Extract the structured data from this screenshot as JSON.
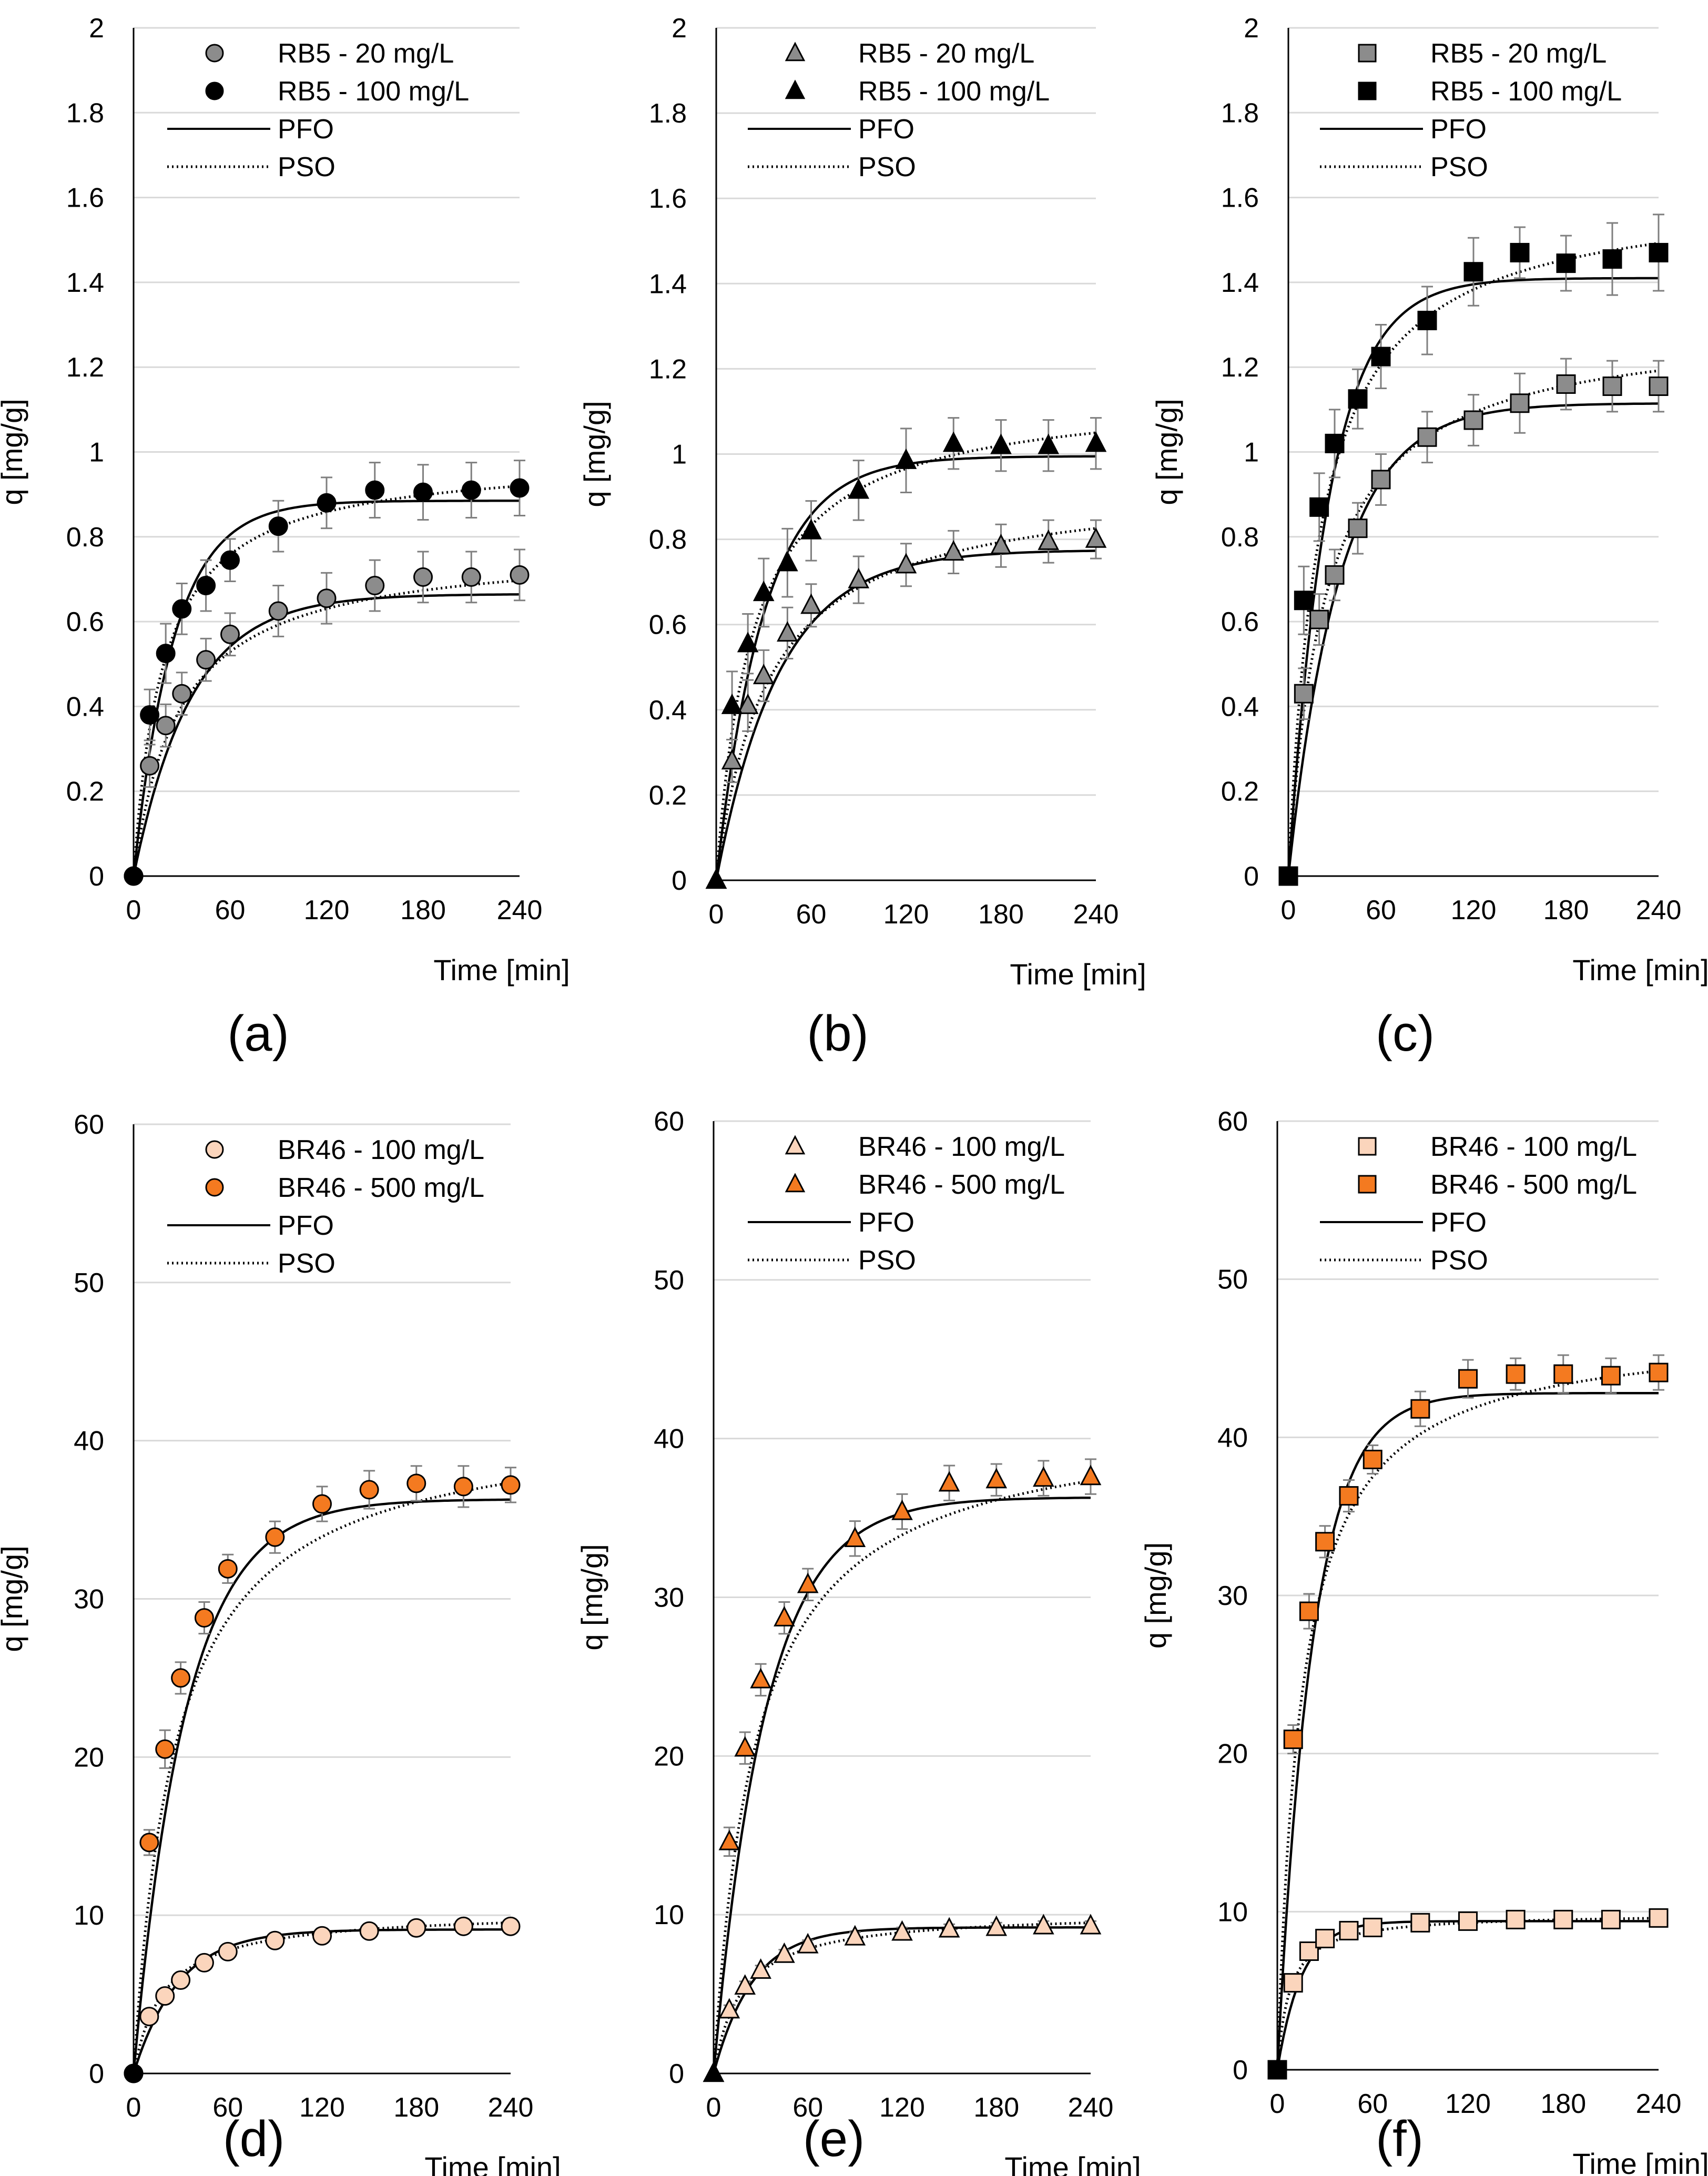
{
  "chart_data": [
    {
      "panel_label": "(a)",
      "type": "scatter",
      "xlabel": "Time [min]",
      "ylabel": "q [mg/g]",
      "xlim": [
        0,
        240
      ],
      "ylim": [
        0,
        2
      ],
      "xticks": [
        "0",
        "60",
        "120",
        "180",
        "240"
      ],
      "yticks": [
        "0",
        "0.2",
        "0.4",
        "0.6",
        "0.8",
        "1",
        "1.2",
        "1.4",
        "1.6",
        "1.8",
        "2"
      ],
      "grid": "horizontal",
      "legend_position": "top-right",
      "marker": "circle",
      "legend": [
        "RB5 - 20 mg/L",
        "RB5 - 100 mg/L",
        "PFO",
        "PSO"
      ],
      "x": [
        0,
        10,
        20,
        30,
        45,
        60,
        90,
        120,
        150,
        180,
        210,
        240
      ],
      "series": [
        {
          "name": "RB5 - 20 mg/L",
          "color": "#8c8c8c",
          "values": [
            0,
            0.26,
            0.355,
            0.43,
            0.51,
            0.57,
            0.625,
            0.655,
            0.685,
            0.705,
            0.705,
            0.71
          ],
          "error": [
            0,
            0.05,
            0.05,
            0.05,
            0.05,
            0.05,
            0.06,
            0.06,
            0.06,
            0.06,
            0.06,
            0.06
          ],
          "pfo": {
            "qe": 0.665,
            "k": 0.028
          },
          "pso": {
            "qe": 0.78,
            "k": 0.045
          }
        },
        {
          "name": "RB5 - 100 mg/L",
          "color": "#000000",
          "values": [
            0,
            0.38,
            0.525,
            0.63,
            0.685,
            0.745,
            0.825,
            0.88,
            0.91,
            0.905,
            0.91,
            0.915
          ],
          "error": [
            0,
            0.06,
            0.07,
            0.06,
            0.06,
            0.05,
            0.06,
            0.06,
            0.065,
            0.065,
            0.065,
            0.065
          ],
          "pfo": {
            "qe": 0.885,
            "k": 0.04
          },
          "pso": {
            "qe": 0.99,
            "k": 0.055
          }
        }
      ]
    },
    {
      "panel_label": "(b)",
      "type": "scatter",
      "xlabel": "Time [min]",
      "ylabel": "q [mg/g]",
      "xlim": [
        0,
        240
      ],
      "ylim": [
        0,
        2
      ],
      "xticks": [
        "0",
        "60",
        "120",
        "180",
        "240"
      ],
      "yticks": [
        "0",
        "0.2",
        "0.4",
        "0.6",
        "0.8",
        "1",
        "1.2",
        "1.4",
        "1.6",
        "1.8",
        "2"
      ],
      "grid": "horizontal",
      "legend_position": "top-right",
      "marker": "triangle",
      "legend": [
        "RB5 - 20 mg/L",
        "RB5 - 100 mg/L",
        "PFO",
        "PSO"
      ],
      "x": [
        0,
        10,
        20,
        30,
        45,
        60,
        90,
        120,
        150,
        180,
        210,
        240
      ],
      "series": [
        {
          "name": "RB5 - 20 mg/L",
          "color": "#8c8c8c",
          "values": [
            0,
            0.28,
            0.41,
            0.48,
            0.58,
            0.645,
            0.705,
            0.74,
            0.77,
            0.785,
            0.795,
            0.8
          ],
          "error": [
            0,
            0.05,
            0.06,
            0.06,
            0.06,
            0.05,
            0.055,
            0.05,
            0.05,
            0.05,
            0.05,
            0.045
          ],
          "pfo": {
            "qe": 0.775,
            "k": 0.025
          },
          "pso": {
            "qe": 0.94,
            "k": 0.032
          }
        },
        {
          "name": "RB5 - 100 mg/L",
          "color": "#000000",
          "values": [
            0,
            0.41,
            0.555,
            0.675,
            0.745,
            0.82,
            0.915,
            0.985,
            1.025,
            1.02,
            1.02,
            1.025
          ],
          "error": [
            0,
            0.08,
            0.07,
            0.08,
            0.08,
            0.07,
            0.07,
            0.075,
            0.06,
            0.06,
            0.06,
            0.06
          ],
          "pfo": {
            "qe": 0.995,
            "k": 0.033
          },
          "pso": {
            "qe": 1.15,
            "k": 0.038
          }
        }
      ]
    },
    {
      "panel_label": "(c)",
      "type": "scatter",
      "xlabel": "Time [min]",
      "ylabel": "q [mg/g]",
      "xlim": [
        0,
        240
      ],
      "ylim": [
        0,
        2
      ],
      "xticks": [
        "0",
        "60",
        "120",
        "180",
        "240"
      ],
      "yticks": [
        "0",
        "0.2",
        "0.4",
        "0.6",
        "0.8",
        "1",
        "1.2",
        "1.4",
        "1.6",
        "1.8",
        "2"
      ],
      "grid": "horizontal",
      "legend_position": "top-right",
      "marker": "square",
      "legend": [
        "RB5 - 20 mg/L",
        "RB5 - 100 mg/L",
        "PFO",
        "PSO"
      ],
      "x": [
        0,
        10,
        20,
        30,
        45,
        60,
        90,
        120,
        150,
        180,
        210,
        240
      ],
      "series": [
        {
          "name": "RB5 - 20 mg/L",
          "color": "#8c8c8c",
          "values": [
            0,
            0.43,
            0.605,
            0.71,
            0.82,
            0.935,
            1.035,
            1.075,
            1.115,
            1.16,
            1.155,
            1.155
          ],
          "error": [
            0,
            0.06,
            0.06,
            0.06,
            0.06,
            0.06,
            0.06,
            0.06,
            0.07,
            0.06,
            0.06,
            0.06
          ],
          "pfo": {
            "qe": 1.115,
            "k": 0.03
          },
          "pso": {
            "qe": 1.31,
            "k": 0.032
          }
        },
        {
          "name": "RB5 - 100 mg/L",
          "color": "#000000",
          "values": [
            0,
            0.65,
            0.87,
            1.02,
            1.125,
            1.225,
            1.31,
            1.425,
            1.47,
            1.445,
            1.455,
            1.47
          ],
          "error": [
            0,
            0.08,
            0.08,
            0.08,
            0.07,
            0.075,
            0.08,
            0.08,
            0.06,
            0.065,
            0.085,
            0.09
          ],
          "pfo": {
            "qe": 1.41,
            "k": 0.038
          },
          "pso": {
            "qe": 1.62,
            "k": 0.03
          }
        }
      ]
    },
    {
      "panel_label": "(d)",
      "type": "scatter",
      "xlabel": "Time [min]",
      "ylabel": "q [mg/g]",
      "xlim": [
        0,
        240
      ],
      "ylim": [
        0,
        60
      ],
      "xticks": [
        "0",
        "60",
        "120",
        "180",
        "240"
      ],
      "yticks": [
        "0",
        "10",
        "20",
        "30",
        "40",
        "50",
        "60"
      ],
      "grid": "horizontal",
      "legend_position": "top-right",
      "marker": "circle",
      "legend": [
        "BR46 - 100 mg/L",
        "BR46 - 500 mg/L",
        "PFO",
        "PSO"
      ],
      "x": [
        0,
        10,
        20,
        30,
        45,
        60,
        90,
        120,
        150,
        180,
        210,
        240
      ],
      "series": [
        {
          "name": "BR46 - 100 mg/L",
          "color": "#fbd5bc",
          "values": [
            0,
            3.6,
            4.9,
            5.9,
            7.0,
            7.7,
            8.4,
            8.7,
            9.0,
            9.2,
            9.3,
            9.3
          ],
          "error": [
            0,
            0.3,
            0.3,
            0.3,
            0.3,
            0.3,
            0.3,
            0.3,
            0.3,
            0.3,
            0.3,
            0.3
          ],
          "pfo": {
            "qe": 9.1,
            "k": 0.035
          },
          "pso": {
            "qe": 10.3,
            "k": 0.005
          }
        },
        {
          "name": "BR46 - 500 mg/L",
          "color": "#f47a20",
          "values": [
            0,
            14.6,
            20.5,
            25.0,
            28.8,
            31.9,
            33.9,
            36.0,
            36.9,
            37.3,
            37.1,
            37.2
          ],
          "error": [
            0,
            0.8,
            1.2,
            1.0,
            1.0,
            0.9,
            1.0,
            1.1,
            1.2,
            1.1,
            1.3,
            1.1
          ],
          "pfo": {
            "qe": 36.3,
            "k": 0.03
          },
          "pso": {
            "qe": 41.5,
            "k": 0.0009
          }
        }
      ]
    },
    {
      "panel_label": "(e)",
      "type": "scatter",
      "xlabel": "Time [min]",
      "ylabel": "q [mg/g]",
      "xlim": [
        0,
        240
      ],
      "ylim": [
        0,
        60
      ],
      "xticks": [
        "0",
        "60",
        "120",
        "180",
        "240"
      ],
      "yticks": [
        "0",
        "10",
        "20",
        "30",
        "40",
        "50",
        "60"
      ],
      "grid": "horizontal",
      "legend_position": "top-right",
      "marker": "triangle",
      "legend": [
        "BR46 - 100 mg/L",
        "BR46 - 500 mg/L",
        "PFO",
        "PSO"
      ],
      "x": [
        0,
        10,
        20,
        30,
        45,
        60,
        90,
        120,
        150,
        180,
        210,
        240
      ],
      "series": [
        {
          "name": "BR46 - 100 mg/L",
          "color": "#fbd5bc",
          "values": [
            0,
            4.0,
            5.5,
            6.5,
            7.5,
            8.1,
            8.6,
            8.9,
            9.1,
            9.2,
            9.3,
            9.3
          ],
          "error": [
            0,
            0.3,
            0.3,
            0.3,
            0.3,
            0.3,
            0.3,
            0.3,
            0.3,
            0.3,
            0.3,
            0.3
          ],
          "pfo": {
            "qe": 9.2,
            "k": 0.04
          },
          "pso": {
            "qe": 10.2,
            "k": 0.0055
          }
        },
        {
          "name": "BR46 - 500 mg/L",
          "color": "#f47a20",
          "values": [
            0,
            14.6,
            20.5,
            24.8,
            28.7,
            30.8,
            33.7,
            35.4,
            37.2,
            37.4,
            37.5,
            37.6
          ],
          "error": [
            0,
            0.9,
            1.0,
            1.0,
            1.0,
            1.0,
            1.1,
            1.1,
            1.1,
            1.0,
            1.1,
            1.1
          ],
          "pfo": {
            "qe": 36.3,
            "k": 0.03
          },
          "pso": {
            "qe": 41.5,
            "k": 0.0009
          }
        }
      ]
    },
    {
      "panel_label": "(f)",
      "type": "scatter",
      "xlabel": "Time [min]",
      "ylabel": "q [mg/g]",
      "xlim": [
        0,
        240
      ],
      "ylim": [
        0,
        60
      ],
      "xticks": [
        "0",
        "60",
        "120",
        "180",
        "240"
      ],
      "yticks": [
        "0",
        "10",
        "20",
        "30",
        "40",
        "50",
        "60"
      ],
      "grid": "horizontal",
      "legend_position": "top-right",
      "marker": "square",
      "legend": [
        "BR46 - 100 mg/L",
        "BR46 - 500 mg/L",
        "PFO",
        "PSO"
      ],
      "x": [
        0,
        10,
        20,
        30,
        45,
        60,
        90,
        120,
        150,
        180,
        210,
        240
      ],
      "series": [
        {
          "name": "BR46 - 100 mg/L",
          "color": "#fbd5bc",
          "values": [
            0,
            5.5,
            7.5,
            8.3,
            8.8,
            9.0,
            9.3,
            9.4,
            9.5,
            9.5,
            9.5,
            9.6
          ],
          "error": [
            0,
            0.3,
            0.3,
            0.3,
            0.3,
            0.3,
            0.3,
            0.3,
            0.3,
            0.3,
            0.3,
            0.3
          ],
          "pfo": {
            "qe": 9.4,
            "k": 0.065
          },
          "pso": {
            "qe": 9.9,
            "k": 0.013
          }
        },
        {
          "name": "BR46 - 500 mg/L",
          "color": "#f47a20",
          "values": [
            0,
            20.9,
            29.0,
            33.4,
            36.3,
            38.6,
            41.8,
            43.7,
            44.0,
            44.0,
            43.9,
            44.1
          ],
          "error": [
            0,
            0.9,
            1.1,
            1.0,
            1.0,
            0.9,
            1.1,
            1.2,
            1.0,
            1.2,
            1.1,
            1.1
          ],
          "pfo": {
            "qe": 42.8,
            "k": 0.045
          },
          "pso": {
            "qe": 47.0,
            "k": 0.0014
          }
        }
      ]
    }
  ]
}
